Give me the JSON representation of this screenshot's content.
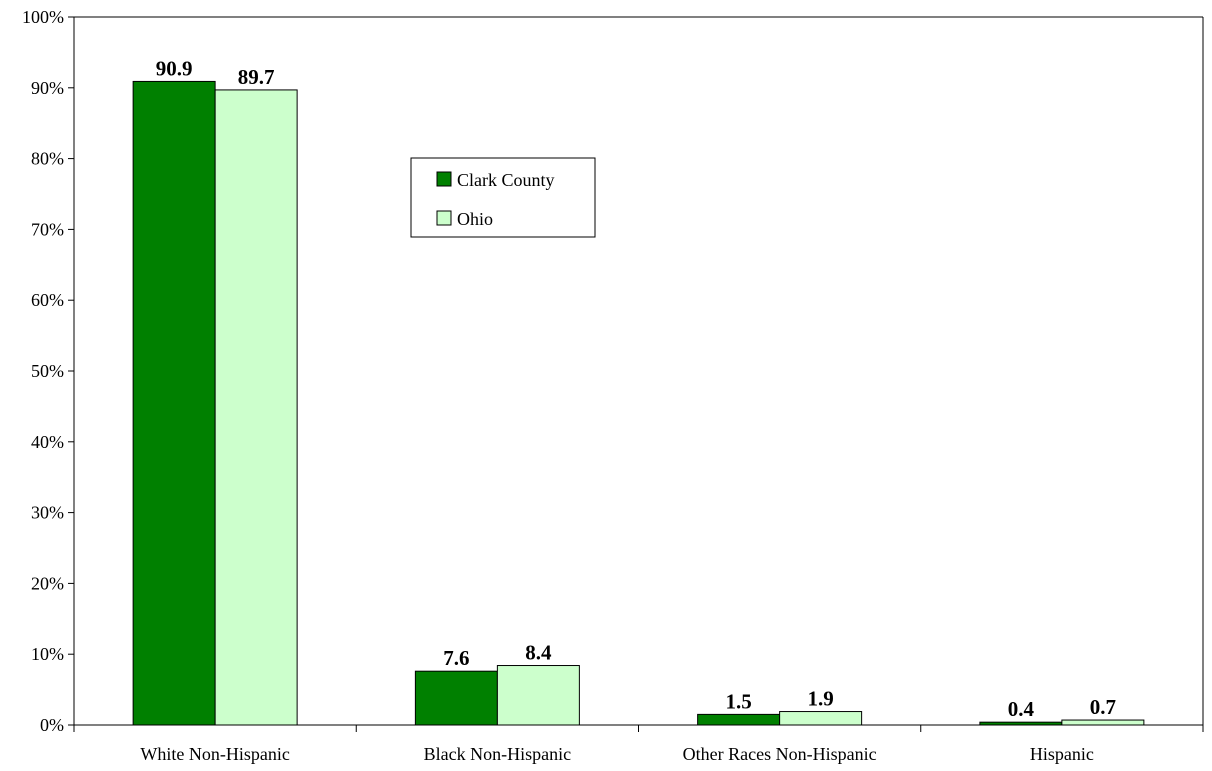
{
  "chart_data": {
    "type": "bar",
    "categories": [
      "White Non-Hispanic",
      "Black Non-Hispanic",
      "Other Races Non-Hispanic",
      "Hispanic"
    ],
    "series": [
      {
        "name": "Clark County",
        "values": [
          90.9,
          7.6,
          1.5,
          0.4
        ],
        "color": "#008000"
      },
      {
        "name": "Ohio",
        "values": [
          89.7,
          8.4,
          1.9,
          0.7
        ],
        "color": "#ccffcc"
      }
    ],
    "data_labels": [
      [
        "90.9",
        "7.6",
        "1.5",
        "0.4"
      ],
      [
        "89.7",
        "8.4",
        "1.9",
        "0.7"
      ]
    ],
    "title": "",
    "xlabel": "",
    "ylabel": "",
    "ylim": [
      0,
      100
    ],
    "yticks": [
      "0%",
      "10%",
      "20%",
      "30%",
      "40%",
      "50%",
      "60%",
      "70%",
      "80%",
      "90%",
      "100%"
    ],
    "grid": false,
    "legend_position": "upper-middle, boxed"
  }
}
